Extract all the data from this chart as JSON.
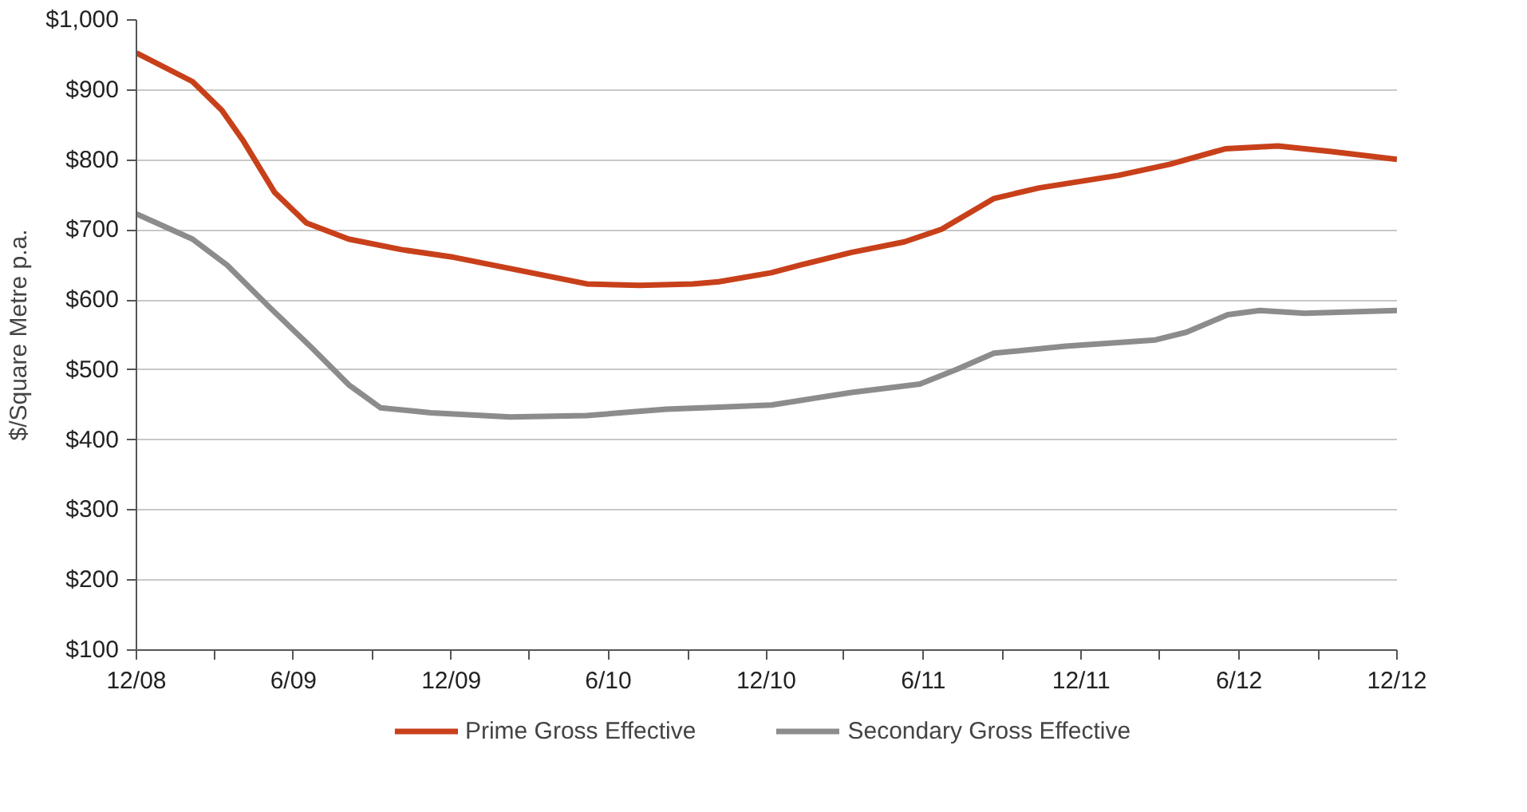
{
  "chart_data": {
    "type": "line",
    "ylabel": "$/Square Metre p.a.",
    "xlim": [
      "2008-12-01",
      "2012-12-01"
    ],
    "xticks": [
      {
        "value": "2008-12-01",
        "label": "12/08"
      },
      {
        "value": "2009-03-01",
        "label": null
      },
      {
        "value": "2009-06-01",
        "label": "6/09"
      },
      {
        "value": "2009-09-01",
        "label": null
      },
      {
        "value": "2009-12-01",
        "label": "12/09"
      },
      {
        "value": "2010-03-01",
        "label": null
      },
      {
        "value": "2010-06-01",
        "label": "6/10"
      },
      {
        "value": "2010-09-01",
        "label": null
      },
      {
        "value": "2010-12-01",
        "label": "12/10"
      },
      {
        "value": "2011-03-01",
        "label": null
      },
      {
        "value": "2011-06-01",
        "label": "6/11"
      },
      {
        "value": "2011-09-01",
        "label": null
      },
      {
        "value": "2011-12-01",
        "label": "12/11"
      },
      {
        "value": "2012-03-01",
        "label": null
      },
      {
        "value": "2012-06-01",
        "label": "6/12"
      },
      {
        "value": "2012-09-01",
        "label": null
      },
      {
        "value": "2012-12-01",
        "label": "12/12"
      }
    ],
    "ylim": [
      100,
      1000
    ],
    "yticks": [
      {
        "value": 100,
        "label": "$100"
      },
      {
        "value": 200,
        "label": "$200"
      },
      {
        "value": 300,
        "label": "$300"
      },
      {
        "value": 400,
        "label": "$400"
      },
      {
        "value": 500,
        "label": "$500"
      },
      {
        "value": 600,
        "label": "$600"
      },
      {
        "value": 700,
        "label": "$700"
      },
      {
        "value": 800,
        "label": "$800"
      },
      {
        "value": 900,
        "label": "$900"
      },
      {
        "value": 1000,
        "label": "$1,000"
      }
    ],
    "grid": "y",
    "legend": "bottom",
    "line_style": "solid",
    "series": [
      {
        "name": "Prime Gross Effective",
        "color": "#c8401a",
        "x": [
          "2008-12-01",
          "2009-02-04",
          "2009-03-10",
          "2009-04-04",
          "2009-05-10",
          "2009-06-16",
          "2009-08-04",
          "2009-10-04",
          "2009-12-04",
          "2010-02-07",
          "2010-05-07",
          "2010-07-07",
          "2010-09-07",
          "2010-10-07",
          "2010-12-07",
          "2011-01-10",
          "2011-03-10",
          "2011-05-10",
          "2011-06-22",
          "2011-08-22",
          "2011-10-13",
          "2012-01-13",
          "2012-03-13",
          "2012-05-16",
          "2012-07-16",
          "2012-09-16",
          "2012-12-01"
        ],
        "values": [
          953,
          912,
          871,
          827,
          754,
          710,
          687,
          672,
          661,
          645,
          623,
          621,
          623,
          626,
          639,
          650,
          668,
          683,
          701,
          745,
          760,
          778,
          794,
          816,
          820,
          812,
          801
        ]
      },
      {
        "name": "Secondary Gross Effective",
        "color": "#8c8c8c",
        "x": [
          "2008-12-01",
          "2009-02-04",
          "2009-03-16",
          "2009-05-04",
          "2009-06-22",
          "2009-08-04",
          "2009-09-10",
          "2009-11-07",
          "2010-02-07",
          "2010-05-07",
          "2010-08-07",
          "2010-10-07",
          "2010-12-07",
          "2011-03-10",
          "2011-05-28",
          "2011-07-10",
          "2011-08-22",
          "2011-11-13",
          "2012-02-25",
          "2012-04-01",
          "2012-05-19",
          "2012-06-25",
          "2012-08-16",
          "2012-12-01"
        ],
        "values": [
          723,
          687,
          650,
          590,
          532,
          479,
          446,
          439,
          433,
          435,
          444,
          447,
          450,
          468,
          480,
          501,
          524,
          534,
          543,
          554,
          579,
          585,
          581,
          585
        ]
      }
    ]
  }
}
